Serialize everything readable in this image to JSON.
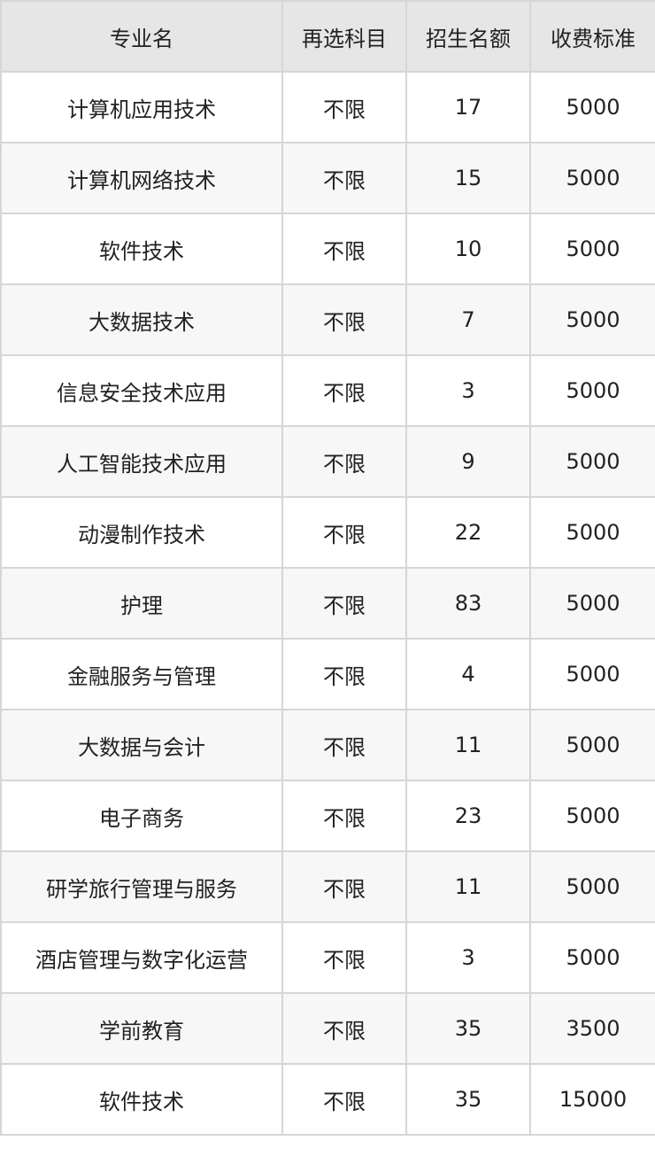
{
  "table": {
    "headers": [
      "专业名",
      "再选科目",
      "招生名额",
      "收费标准"
    ],
    "rows": [
      [
        "计算机应用技术",
        "不限",
        "17",
        "5000"
      ],
      [
        "计算机网络技术",
        "不限",
        "15",
        "5000"
      ],
      [
        "软件技术",
        "不限",
        "10",
        "5000"
      ],
      [
        "大数据技术",
        "不限",
        "7",
        "5000"
      ],
      [
        "信息安全技术应用",
        "不限",
        "3",
        "5000"
      ],
      [
        "人工智能技术应用",
        "不限",
        "9",
        "5000"
      ],
      [
        "动漫制作技术",
        "不限",
        "22",
        "5000"
      ],
      [
        "护理",
        "不限",
        "83",
        "5000"
      ],
      [
        "金融服务与管理",
        "不限",
        "4",
        "5000"
      ],
      [
        "大数据与会计",
        "不限",
        "11",
        "5000"
      ],
      [
        "电子商务",
        "不限",
        "23",
        "5000"
      ],
      [
        "研学旅行管理与服务",
        "不限",
        "11",
        "5000"
      ],
      [
        "酒店管理与数字化运营",
        "不限",
        "3",
        "5000"
      ],
      [
        "学前教育",
        "不限",
        "35",
        "3500"
      ],
      [
        "软件技术",
        "不限",
        "35",
        "15000"
      ]
    ]
  }
}
